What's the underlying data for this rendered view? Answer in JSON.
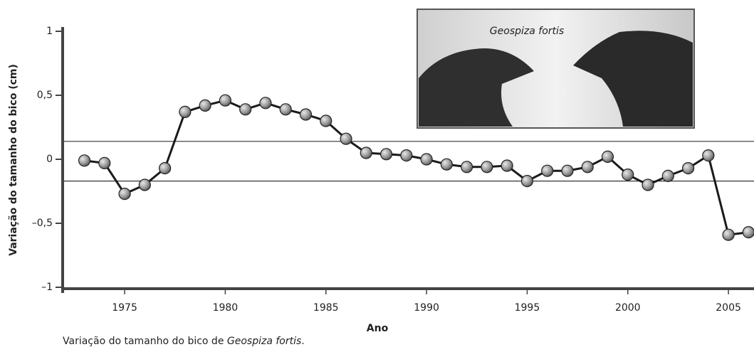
{
  "chart_data": {
    "type": "line",
    "ylabel": "Variação do tamanho do bico (cm)",
    "xlabel": "Ano",
    "inset_label": "Geospiza fortis",
    "caption": [
      "Variação do tamanho do bico de ",
      "Geospiza fortis",
      "."
    ],
    "x": [
      1973,
      1974,
      1975,
      1976,
      1977,
      1978,
      1979,
      1980,
      1981,
      1982,
      1983,
      1984,
      1985,
      1986,
      1987,
      1988,
      1989,
      1990,
      1991,
      1992,
      1993,
      1994,
      1995,
      1996,
      1997,
      1998,
      1999,
      2000,
      2001,
      2002,
      2003,
      2004,
      2005,
      2006
    ],
    "values": [
      -0.01,
      -0.03,
      -0.27,
      -0.2,
      -0.07,
      0.37,
      0.42,
      0.46,
      0.39,
      0.44,
      0.39,
      0.35,
      0.3,
      0.16,
      0.05,
      0.04,
      0.03,
      0.0,
      -0.04,
      -0.06,
      -0.06,
      -0.05,
      -0.17,
      -0.09,
      -0.09,
      -0.06,
      0.02,
      -0.12,
      -0.2,
      -0.13,
      -0.07,
      0.03,
      -0.59,
      -0.57
    ],
    "color": "#8c8c8c",
    "reference_lines": [
      0.14,
      -0.17
    ],
    "xlim": [
      1971.92,
      2006.27
    ],
    "xticks": [
      1975,
      1980,
      1985,
      1990,
      1995,
      2000,
      2005
    ],
    "ylim": [
      -1,
      1
    ],
    "yticks": [
      {
        "value": -1,
        "label": "–1"
      },
      {
        "value": -0.5,
        "label": "–0,5"
      },
      0,
      {
        "value": 0.5,
        "label": "0,5"
      },
      1
    ]
  }
}
